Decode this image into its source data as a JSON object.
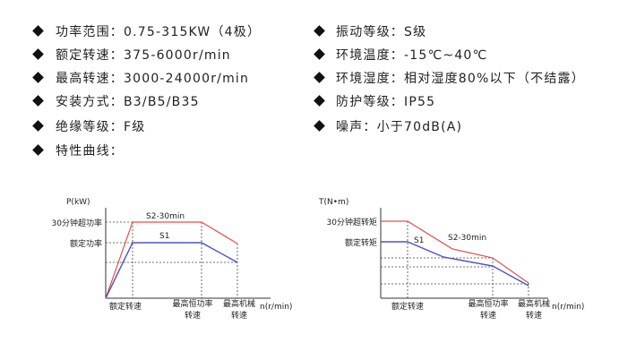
{
  "specs_left": [
    "功率范围：0.75-315KW（4极）",
    "额定转速：375-6000r/min",
    "最高转速：3000-24000r/min",
    "安装方式：B3/B5/B35",
    "绝缘等级：F级",
    "特性曲线："
  ],
  "specs_right": [
    "振动等级：S级",
    "环境温度：-15℃~40℃",
    "环境湿度：相对湿度80%以下（不结露）",
    "防护等级：IP55",
    "噪声：小于70dB(A)"
  ],
  "power_chart": {
    "y_label": "P(kW)",
    "overload_label": "30分钟超功率",
    "rated_label": "额定功率",
    "s2_label": "S2-30min",
    "s1_label": "S1",
    "x_labels": [
      [
        "额定转速"
      ],
      [
        "最高恒功率",
        "转速"
      ],
      [
        "最高机械",
        "转速"
      ]
    ],
    "x_label": "n(r/min)"
  },
  "torque_chart": {
    "y_label": "T(N•m)",
    "overload_label": "30分钟超转矩",
    "rated_label": "额定转矩",
    "s1_label": "S1",
    "s2_label": "S2-30min",
    "x_labels": [
      [
        "额定转速"
      ],
      [
        "最高恒功率",
        "转速"
      ],
      [
        "最高机械",
        "转速"
      ]
    ],
    "x_label": "n(r/min)"
  }
}
